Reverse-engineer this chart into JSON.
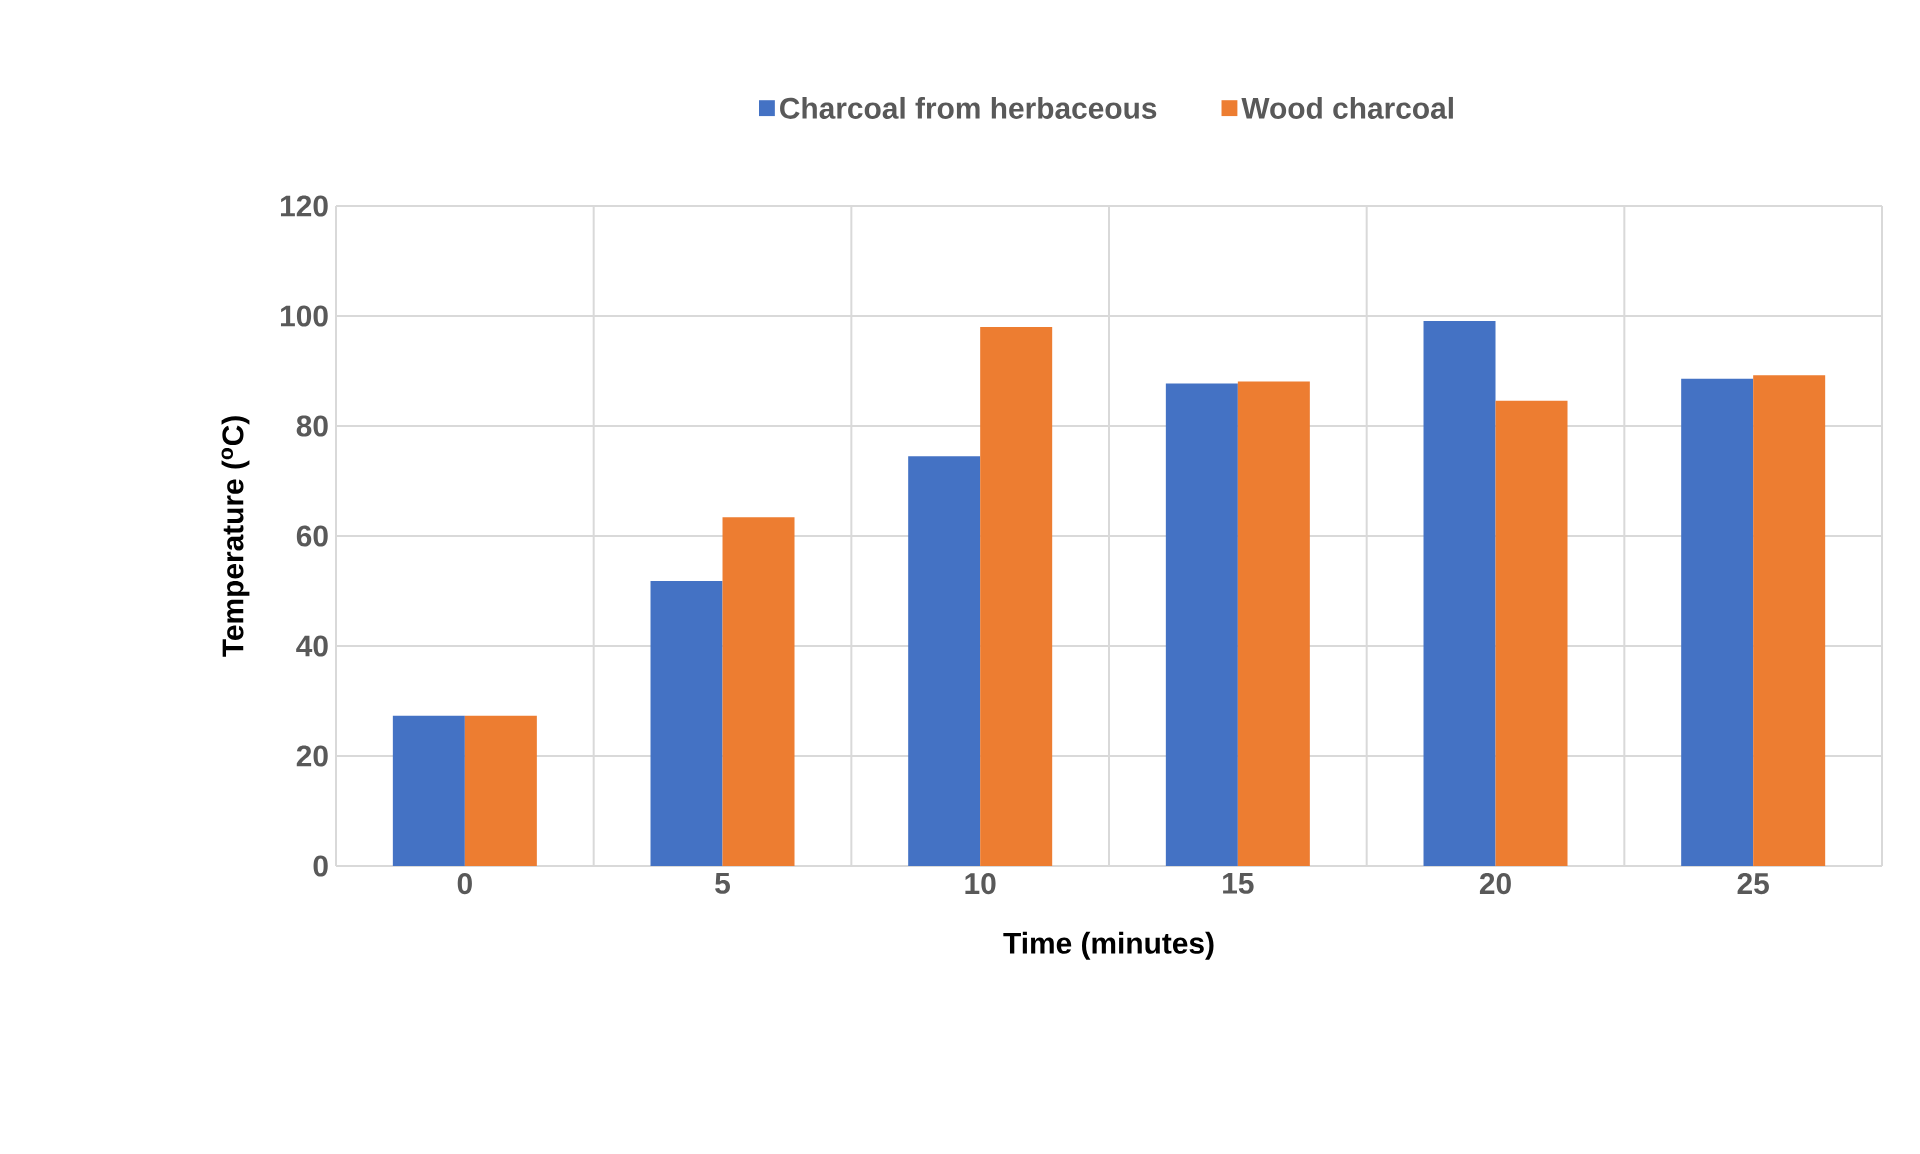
{
  "chart_data": {
    "type": "bar",
    "xlabel": "Time (minutes)",
    "ylabel": "Temperature ($^{o}$C)",
    "categories": [
      "0",
      "5",
      "10",
      "15",
      "20",
      "25"
    ],
    "series": [
      {
        "name": "Charcoal from herbaceous",
        "color": "#4472c4",
        "values": [
          27.3,
          51.8,
          74.5,
          87.7,
          99.1,
          88.6
        ]
      },
      {
        "name": "Wood charcoal",
        "color": "#ed7d31",
        "values": [
          27.3,
          63.4,
          98.0,
          88.1,
          84.6,
          89.2
        ]
      }
    ],
    "ylim": [
      0,
      120
    ],
    "yticks": [
      0,
      20,
      40,
      60,
      80,
      100,
      120
    ],
    "grid": true,
    "legend": "top"
  }
}
